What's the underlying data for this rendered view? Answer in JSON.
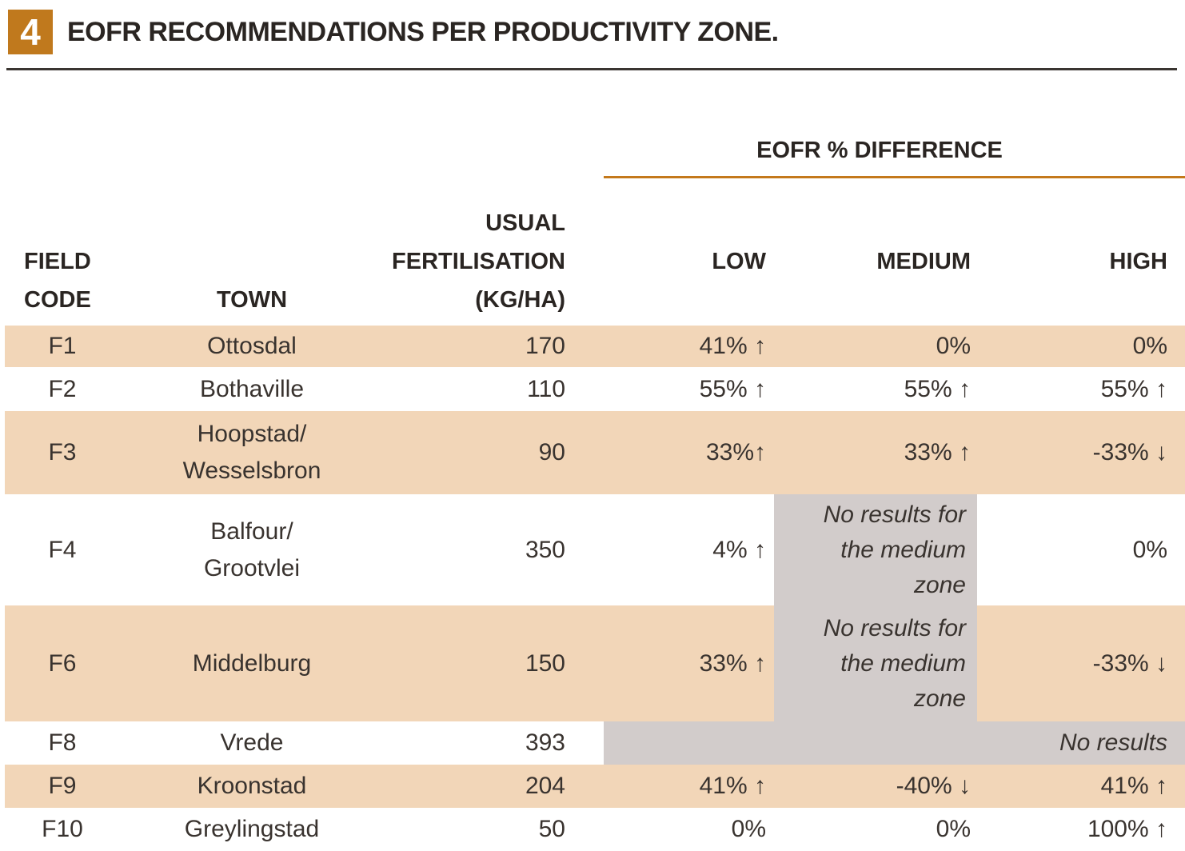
{
  "figure": {
    "number": "4",
    "title": "EOFR RECOMMENDATIONS PER PRODUCTIVITY ZONE."
  },
  "table": {
    "headers": {
      "field_code": "FIELD\nCODE",
      "town": "TOWN",
      "usual_fertilisation": "USUAL\nFERTILISATION\n(KG/HA)",
      "eofr_group": "EOFR % DIFFERENCE",
      "low": "LOW",
      "medium": "MEDIUM",
      "high": "HIGH"
    },
    "rows": [
      {
        "code": "F1",
        "town": "Ottosdal",
        "usual": "170",
        "low": "41% ↑",
        "medium": "0%",
        "high": "0%"
      },
      {
        "code": "F2",
        "town": "Bothaville",
        "usual": "110",
        "low": "55% ↑",
        "medium": "55% ↑",
        "high": "55% ↑"
      },
      {
        "code": "F3",
        "town": "Hoopstad/\nWesselsbron",
        "usual": "90",
        "low": "33%↑",
        "medium": "33% ↑",
        "high": "-33% ↓"
      },
      {
        "code": "F4",
        "town": "Balfour/\nGrootvlei",
        "usual": "350",
        "low": "4% ↑",
        "medium": "No results for the medium zone",
        "high": "0%"
      },
      {
        "code": "F6",
        "town": "Middelburg",
        "usual": "150",
        "low": "33% ↑",
        "medium": "No results for the medium zone",
        "high": "-33% ↓"
      },
      {
        "code": "F8",
        "town": "Vrede",
        "usual": "393",
        "all_zones": "No results"
      },
      {
        "code": "F9",
        "town": "Kroonstad",
        "usual": "204",
        "low": "41% ↑",
        "medium": "-40% ↓",
        "high": "41% ↑"
      },
      {
        "code": "F10",
        "town": "Greylingstad",
        "usual": "50",
        "low": "0%",
        "medium": "0%",
        "high": "100% ↑"
      }
    ]
  },
  "colors": {
    "row_shade": "#f2d6b8",
    "no_results_shade": "#d2cccb",
    "accent_orange": "#c0791d",
    "rule_dark": "#3a3531",
    "text": "#39332f"
  },
  "chart_data": {
    "type": "table",
    "title": "EOFR RECOMMENDATIONS PER PRODUCTIVITY ZONE.",
    "figure_number": "4",
    "columns": [
      "FIELD CODE",
      "TOWN",
      "USUAL FERTILISATION (KG/HA)",
      "EOFR % DIFFERENCE LOW",
      "EOFR % DIFFERENCE MEDIUM",
      "EOFR % DIFFERENCE HIGH"
    ],
    "rows": [
      [
        "F1",
        "Ottosdal",
        170,
        "41% up",
        "0%",
        "0%"
      ],
      [
        "F2",
        "Bothaville",
        110,
        "55% up",
        "55% up",
        "55% up"
      ],
      [
        "F3",
        "Hoopstad/Wesselsbron",
        90,
        "33% up",
        "33% up",
        "-33% down"
      ],
      [
        "F4",
        "Balfour/Grootvlei",
        350,
        "4% up",
        "No results for the medium zone",
        "0%"
      ],
      [
        "F6",
        "Middelburg",
        150,
        "33% up",
        "No results for the medium zone",
        "-33% down"
      ],
      [
        "F8",
        "Vrede",
        393,
        "No results",
        "No results",
        "No results"
      ],
      [
        "F9",
        "Kroonstad",
        204,
        "41% up",
        "-40% down",
        "41% up"
      ],
      [
        "F10",
        "Greylingstad",
        50,
        "0%",
        "0%",
        "100% up"
      ]
    ]
  }
}
